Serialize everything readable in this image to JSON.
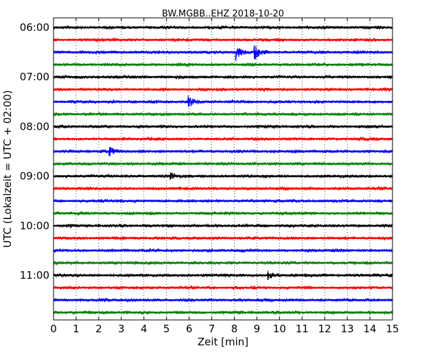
{
  "chart_data": {
    "type": "line",
    "title": "BW.MGBB..EHZ 2018-10-20",
    "xlabel": "Zeit  [min]",
    "ylabel": "UTC (Lokalzeit = UTC + 02:00)",
    "xlim": [
      0,
      15
    ],
    "x_ticks": [
      0,
      1,
      2,
      3,
      4,
      5,
      6,
      7,
      8,
      9,
      10,
      11,
      12,
      13,
      14,
      15
    ],
    "x_tick_labels": [
      "0",
      "1",
      "2",
      "3",
      "4",
      "5",
      "6",
      "7",
      "8",
      "9",
      "10",
      "11",
      "12",
      "13",
      "14",
      "15"
    ],
    "y_tick_labels": [
      "06:00",
      "07:00",
      "08:00",
      "09:00",
      "10:00",
      "11:00"
    ],
    "y_tick_trace_index": [
      0,
      4,
      8,
      12,
      16,
      20
    ],
    "trace_interval_minutes": 15,
    "trace_count": 24,
    "grid": "vertical dotted",
    "trace_colors": [
      "#000000",
      "#ff0000",
      "#0000ff",
      "#008000"
    ],
    "events": [
      {
        "trace": 2,
        "t": 8.1,
        "amp": 0.5
      },
      {
        "trace": 2,
        "t": 8.9,
        "amp": 0.55
      },
      {
        "trace": 6,
        "t": 6.0,
        "amp": 0.35
      },
      {
        "trace": 10,
        "t": 2.5,
        "amp": 0.3
      },
      {
        "trace": 12,
        "t": 5.2,
        "amp": 0.25
      },
      {
        "trace": 20,
        "t": 9.5,
        "amp": 0.25
      }
    ]
  }
}
